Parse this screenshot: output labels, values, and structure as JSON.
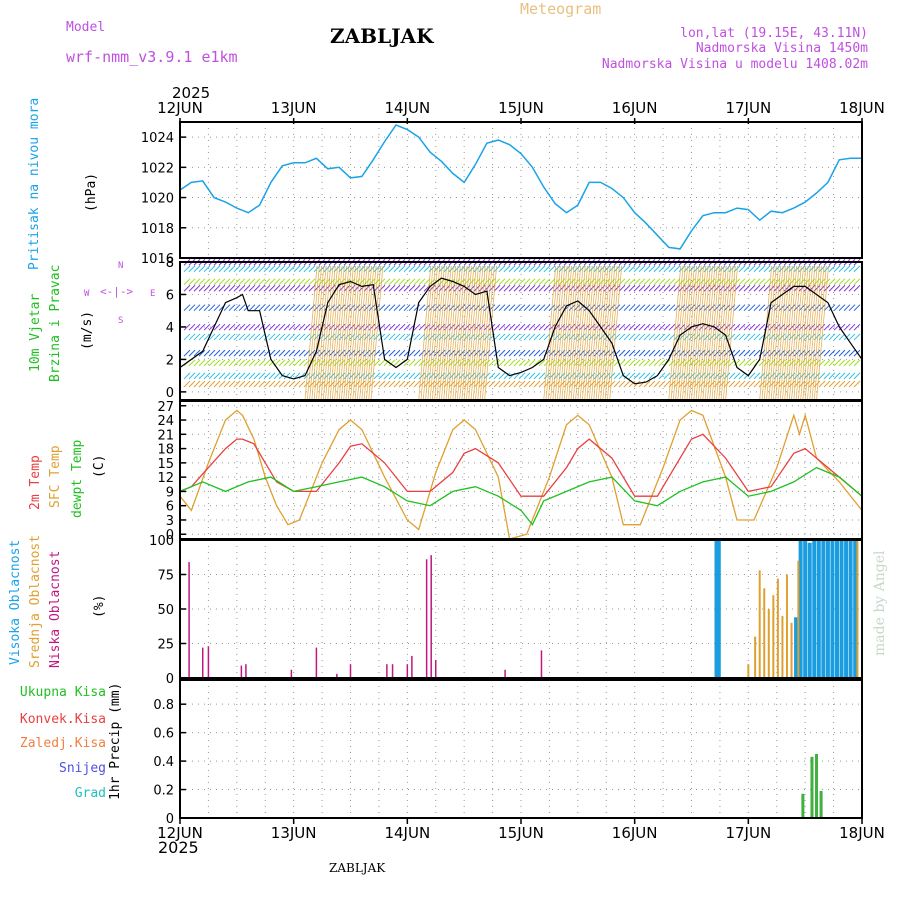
{
  "header": {
    "model_label": "Model",
    "model_value": "wrf-nmm_v3.9.1 e1km",
    "station": "ZABLJAK",
    "meteogram": "Meteogram",
    "lonlat": "lon,lat (19.15E, 43.11N)",
    "elevation": "Nadmorska Visina 1450m",
    "model_elevation": "Nadmorska Visina u modelu 1408.02m",
    "year_top": "2025",
    "year_bottom": "2025",
    "footer_station": "ZABLJAK",
    "watermark": "made by Angel"
  },
  "colors": {
    "pressure": "#1aa3e8",
    "temp2m": "#e84040",
    "sfc": "#e0a030",
    "dewpt": "#20c020",
    "high_cloud": "#1a9de0",
    "mid_cloud": "#e0a030",
    "low_cloud": "#c01880",
    "total_precip": "#40b040",
    "wind_black": "#000000"
  },
  "chart_data": [
    {
      "panel": "pressure",
      "type": "line",
      "ylabel_lines": [
        "Pritisak na nivou mora",
        "(hPa)"
      ],
      "yticks": [
        1016,
        1018,
        1020,
        1022,
        1024
      ],
      "ylim": [
        1016,
        1025
      ],
      "x_ticks": [
        "12JUN",
        "13JUN",
        "14JUN",
        "15JUN",
        "16JUN",
        "17JUN",
        "18JUN"
      ],
      "series": [
        {
          "name": "Pritisak na nivou mora",
          "x": [
            0,
            0.1,
            0.2,
            0.3,
            0.4,
            0.5,
            0.6,
            0.7,
            0.8,
            0.9,
            1.0,
            1.1,
            1.2,
            1.3,
            1.4,
            1.5,
            1.6,
            1.7,
            1.8,
            1.9,
            2.0,
            2.1,
            2.2,
            2.3,
            2.4,
            2.5,
            2.6,
            2.7,
            2.8,
            2.9,
            3.0,
            3.1,
            3.2,
            3.3,
            3.4,
            3.5,
            3.6,
            3.7,
            3.8,
            3.9,
            4.0,
            4.1,
            4.2,
            4.3,
            4.4,
            4.5,
            4.6,
            4.7,
            4.8,
            4.9,
            5.0,
            5.1,
            5.2,
            5.3,
            5.4,
            5.5,
            5.6,
            5.7,
            5.8,
            5.9,
            6.0
          ],
          "values": [
            1020.5,
            1021.0,
            1021.1,
            1020.0,
            1019.7,
            1019.3,
            1019.0,
            1019.5,
            1021.0,
            1022.1,
            1022.3,
            1022.3,
            1022.6,
            1021.9,
            1022.0,
            1021.3,
            1021.4,
            1022.5,
            1023.7,
            1024.8,
            1024.5,
            1024.0,
            1023.0,
            1022.4,
            1021.6,
            1021.0,
            1022.2,
            1023.6,
            1023.8,
            1023.5,
            1022.9,
            1022.0,
            1020.7,
            1019.6,
            1019.0,
            1019.5,
            1021.0,
            1021.0,
            1020.6,
            1020.0,
            1019.0,
            1018.3,
            1017.5,
            1016.7,
            1016.6,
            1017.8,
            1018.8,
            1019.0,
            1019.0,
            1019.3,
            1019.2,
            1018.5,
            1019.1,
            1019.0,
            1019.3,
            1019.7,
            1020.3,
            1021.0,
            1022.5,
            1022.6,
            1022.6
          ]
        }
      ]
    },
    {
      "panel": "wind",
      "type": "line",
      "ylabel_lines": [
        "10m Vjetar",
        "Brzina i Pravac",
        "(m/s)"
      ],
      "compass": {
        "north": "N",
        "west": "W",
        "east": "E",
        "south": "S"
      },
      "yticks": [
        0,
        2,
        4,
        6,
        8
      ],
      "ylim": [
        -0.5,
        8
      ],
      "series": [
        {
          "name": "10m Vjetar",
          "x": [
            0,
            0.2,
            0.3,
            0.4,
            0.5,
            0.55,
            0.6,
            0.7,
            0.8,
            0.9,
            1.0,
            1.1,
            1.2,
            1.3,
            1.4,
            1.5,
            1.6,
            1.7,
            1.8,
            1.9,
            2.0,
            2.1,
            2.2,
            2.3,
            2.4,
            2.5,
            2.6,
            2.7,
            2.8,
            2.9,
            3.0,
            3.1,
            3.2,
            3.3,
            3.4,
            3.5,
            3.6,
            3.7,
            3.8,
            3.9,
            4.0,
            4.1,
            4.2,
            4.3,
            4.4,
            4.5,
            4.6,
            4.7,
            4.8,
            4.9,
            5.0,
            5.1,
            5.2,
            5.3,
            5.4,
            5.5,
            5.6,
            5.7,
            5.8,
            5.9,
            6.0
          ],
          "values": [
            1.5,
            2.5,
            4.0,
            5.5,
            5.8,
            6.0,
            5.0,
            5.0,
            2.0,
            1.0,
            0.8,
            1.0,
            2.5,
            5.5,
            6.6,
            6.8,
            6.5,
            6.6,
            2.0,
            1.5,
            2.0,
            5.5,
            6.5,
            7.0,
            6.8,
            6.5,
            6.0,
            6.2,
            1.5,
            1.0,
            1.2,
            1.5,
            2.0,
            4.0,
            5.3,
            5.6,
            5.0,
            4.0,
            3.0,
            1.0,
            0.5,
            0.6,
            1.0,
            2.0,
            3.5,
            4.0,
            4.2,
            4.0,
            3.5,
            1.5,
            1.0,
            2.0,
            5.5,
            6.0,
            6.5,
            6.5,
            6.0,
            5.5,
            4.0,
            3.0,
            2.0
          ]
        }
      ]
    },
    {
      "panel": "temperature",
      "type": "line",
      "ylabel_lines": [
        "2m Temp",
        "SFC Temp",
        "dewpt Temp",
        "(C)"
      ],
      "yticks": [
        0,
        3,
        6,
        9,
        12,
        15,
        18,
        21,
        24,
        27
      ],
      "ylim": [
        -1,
        28
      ],
      "series": [
        {
          "name": "2m Temp",
          "x": [
            0,
            0.1,
            0.25,
            0.4,
            0.5,
            0.55,
            0.65,
            0.75,
            0.85,
            1.0,
            1.2,
            1.4,
            1.5,
            1.6,
            1.8,
            2.0,
            2.2,
            2.4,
            2.5,
            2.6,
            2.8,
            3.0,
            3.2,
            3.4,
            3.5,
            3.6,
            3.8,
            4.0,
            4.2,
            4.4,
            4.5,
            4.6,
            4.8,
            5.0,
            5.2,
            5.4,
            5.5,
            5.6,
            5.8,
            6.0
          ],
          "values": [
            9,
            10,
            14,
            18,
            20,
            20,
            19,
            15,
            11,
            9,
            9,
            15,
            18.5,
            19,
            15,
            9,
            9,
            13,
            17,
            18,
            15,
            8,
            8,
            14,
            18,
            20,
            16,
            8,
            8,
            16,
            20,
            21,
            16,
            9,
            10,
            17,
            18,
            16,
            12,
            8
          ]
        },
        {
          "name": "SFC Temp",
          "x": [
            0,
            0.1,
            0.25,
            0.4,
            0.5,
            0.55,
            0.65,
            0.75,
            0.85,
            0.95,
            1.05,
            1.25,
            1.4,
            1.5,
            1.6,
            1.8,
            2.0,
            2.1,
            2.25,
            2.4,
            2.5,
            2.6,
            2.8,
            2.9,
            3.05,
            3.25,
            3.4,
            3.5,
            3.6,
            3.8,
            3.9,
            4.05,
            4.25,
            4.4,
            4.5,
            4.6,
            4.8,
            4.9,
            5.05,
            5.25,
            5.4,
            5.45,
            5.5,
            5.6,
            5.8,
            6.0
          ],
          "values": [
            8,
            5,
            15,
            24,
            26,
            25,
            20,
            12,
            6,
            2,
            3,
            15,
            22,
            24,
            22,
            12,
            3,
            1,
            13,
            22,
            24,
            22,
            12,
            -1,
            0,
            12,
            23,
            25,
            23,
            12,
            2,
            2,
            14,
            24,
            26,
            25,
            12,
            3,
            3,
            14,
            25,
            21,
            25,
            16,
            11,
            5
          ]
        },
        {
          "name": "dewpt Temp",
          "x": [
            0,
            0.2,
            0.4,
            0.6,
            0.8,
            1.0,
            1.2,
            1.4,
            1.6,
            1.8,
            2.0,
            2.2,
            2.4,
            2.6,
            2.8,
            3.0,
            3.1,
            3.2,
            3.4,
            3.6,
            3.8,
            4.0,
            4.2,
            4.4,
            4.6,
            4.8,
            5.0,
            5.2,
            5.4,
            5.6,
            5.8,
            6.0
          ],
          "values": [
            9,
            11,
            9,
            11,
            12,
            9,
            10,
            11,
            12,
            10,
            7,
            6,
            9,
            10,
            8,
            5,
            2,
            7,
            9,
            11,
            12,
            7,
            6,
            9,
            11,
            12,
            8,
            9,
            11,
            14,
            12,
            8
          ]
        }
      ]
    },
    {
      "panel": "cloud",
      "type": "bar",
      "ylabel_lines": [
        "Visoka Oblacnost",
        "Srednja Oblacnost",
        "Niska Oblacnost",
        "(%)"
      ],
      "yticks": [
        0,
        25,
        50,
        75,
        100
      ],
      "ylim": [
        0,
        100
      ],
      "series": [
        {
          "name": "Visoka Oblacnost",
          "x": [
            4.72,
            4.74,
            5.42,
            5.46,
            5.5,
            5.54,
            5.58,
            5.62,
            5.66,
            5.7,
            5.74,
            5.78,
            5.82,
            5.86,
            5.9,
            5.94
          ],
          "values": [
            100,
            100,
            44,
            100,
            100,
            98,
            100,
            100,
            100,
            100,
            100,
            100,
            100,
            100,
            100,
            100
          ]
        },
        {
          "name": "Srednja Oblacnost",
          "x": [
            5.0,
            5.06,
            5.1,
            5.14,
            5.18,
            5.22,
            5.26,
            5.3,
            5.34,
            5.38,
            5.44,
            5.96
          ],
          "values": [
            10,
            30,
            78,
            65,
            50,
            60,
            72,
            45,
            75,
            40,
            85,
            100
          ]
        },
        {
          "name": "Niska Oblacnost",
          "x": [
            0.08,
            0.2,
            0.25,
            0.54,
            0.58,
            0.98,
            1.2,
            1.38,
            1.5,
            1.82,
            1.87,
            2.0,
            2.04,
            2.17,
            2.21,
            2.25,
            2.86,
            3.18
          ],
          "values": [
            84,
            22,
            23,
            9,
            10,
            6,
            22,
            3,
            10,
            10,
            10,
            10,
            16,
            86,
            89,
            13,
            6,
            20
          ]
        }
      ]
    },
    {
      "panel": "precip",
      "type": "bar",
      "ylabel_lines": [
        "Ukupna Kisa",
        "Konvek.Kisa",
        "Zaledj.Kisa",
        "Snijeg",
        "Grad",
        "1hr Precip (mm)"
      ],
      "yticks": [
        0,
        0.2,
        0.4,
        0.6,
        0.8
      ],
      "ylim": [
        0,
        0.97
      ],
      "series": [
        {
          "name": "Ukupna Kisa",
          "x": [
            5.48,
            5.56,
            5.6,
            5.64
          ],
          "values": [
            0.17,
            0.43,
            0.45,
            0.19
          ]
        }
      ]
    }
  ]
}
